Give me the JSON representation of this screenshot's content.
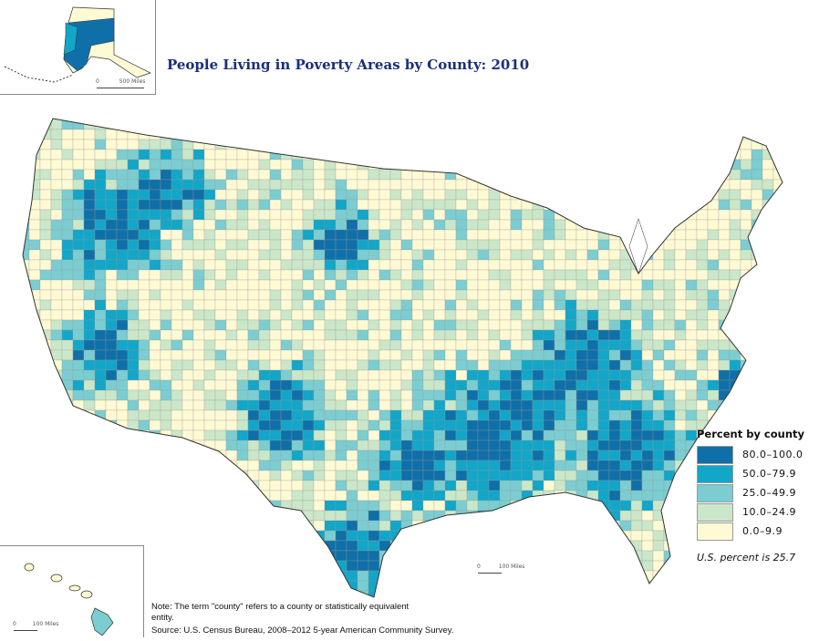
{
  "title": "People Living in Poverty Areas by County: 2010",
  "legend": {
    "title": "Percent by county",
    "items": [
      {
        "label": "80.0–100.0",
        "color": "#0f6fa8"
      },
      {
        "label": "50.0–79.9",
        "color": "#12a6c8"
      },
      {
        "label": "25.0–49.9",
        "color": "#7bcdd1"
      },
      {
        "label": "10.0–24.9",
        "color": "#cbe7c9"
      },
      {
        "label": "0.0–9.9",
        "color": "#fffad4"
      }
    ],
    "us_percent": "U.S. percent is 25.7"
  },
  "scales": {
    "alaska": {
      "zero": "0",
      "label": "500 Miles"
    },
    "hawaii": {
      "zero": "0",
      "label": "100 Miles"
    },
    "mainland": {
      "zero": "0",
      "label": "100 Miles"
    }
  },
  "notes": {
    "note": "Note: The term \"county\" refers to a county or statistically equivalent entity.",
    "source": "Source: U.S. Census Bureau, 2008–2012 5-year American Community Survey."
  }
}
